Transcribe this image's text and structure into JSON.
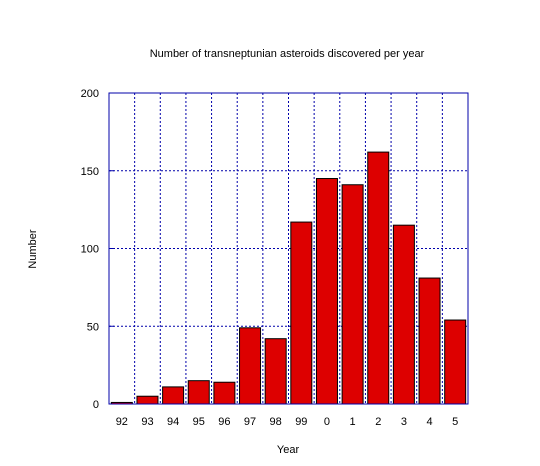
{
  "chart_data": {
    "type": "bar",
    "title": "Number of transneptunian asteroids discovered per year",
    "xlabel": "Year",
    "ylabel": "Number",
    "categories": [
      "92",
      "93",
      "94",
      "95",
      "96",
      "97",
      "98",
      "99",
      "0",
      "1",
      "2",
      "3",
      "4",
      "5"
    ],
    "values": [
      1,
      5,
      11,
      15,
      14,
      49,
      42,
      117,
      145,
      141,
      162,
      115,
      81,
      54
    ],
    "ylim": [
      0,
      200
    ],
    "yticks": [
      "0",
      "50",
      "100",
      "150",
      "200"
    ],
    "grid": true,
    "legend": "none",
    "colors": {
      "bar_fill": "#dd0000",
      "bar_stroke": "#000000",
      "grid": "#0000aa",
      "axis": "#0000aa"
    }
  }
}
